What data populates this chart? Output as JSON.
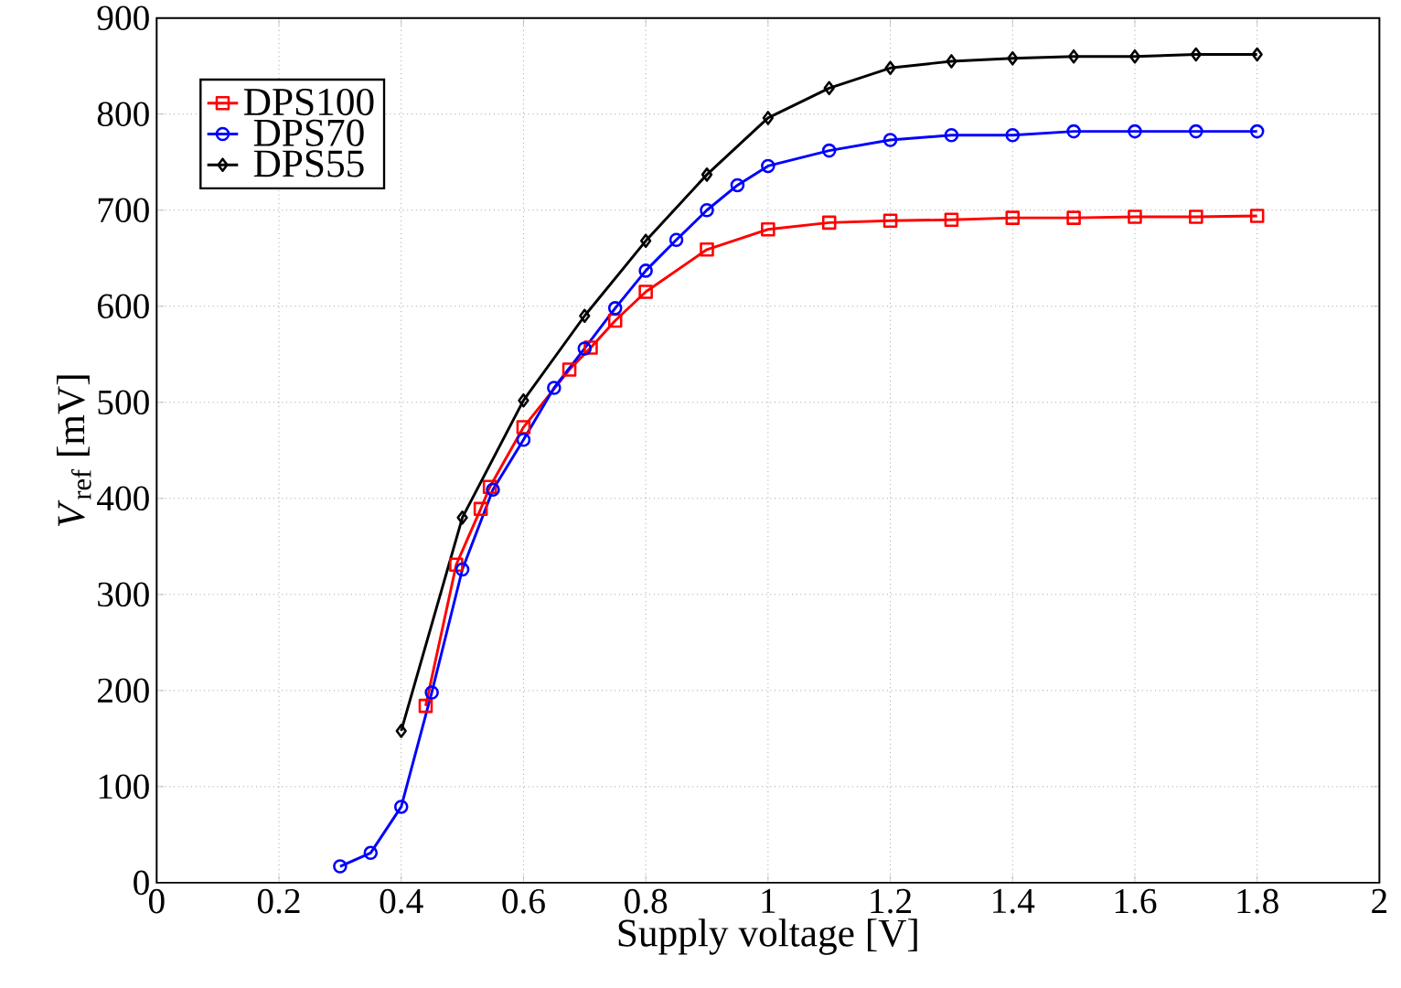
{
  "chart_data": {
    "type": "line",
    "xlabel": "Supply voltage [V]",
    "ylabel": "*V*$_{ref}$ [mV]",
    "xlim": [
      0,
      2
    ],
    "ylim": [
      0,
      900
    ],
    "xticks": [
      0,
      0.2,
      0.4,
      0.6,
      0.8,
      1,
      1.2,
      1.4,
      1.6,
      1.8,
      2
    ],
    "yticks": [
      0,
      100,
      200,
      300,
      400,
      500,
      600,
      700,
      800,
      900
    ],
    "grid": true,
    "legend": "top left",
    "line_style": "solid",
    "series": [
      {
        "name": "DPS100",
        "color": "#ff0000",
        "marker": "square",
        "x": [
          0.44,
          0.49,
          0.53,
          0.545,
          0.6,
          0.675,
          0.71,
          0.75,
          0.8,
          0.9,
          1.0,
          1.1,
          1.2,
          1.3,
          1.4,
          1.5,
          1.6,
          1.7,
          1.8
        ],
        "values": [
          184,
          331,
          389,
          412,
          474,
          534,
          557,
          585,
          615,
          659,
          680,
          687,
          689,
          690,
          692,
          692,
          693,
          693,
          694
        ]
      },
      {
        "name": "DPS70",
        "color": "#0000ff",
        "marker": "circle",
        "x": [
          0.3,
          0.35,
          0.4,
          0.45,
          0.5,
          0.55,
          0.6,
          0.65,
          0.7,
          0.75,
          0.8,
          0.85,
          0.9,
          0.95,
          1.0,
          1.1,
          1.2,
          1.3,
          1.4,
          1.5,
          1.6,
          1.7,
          1.8
        ],
        "values": [
          17,
          31,
          79,
          198,
          326,
          409,
          461,
          515,
          556,
          598,
          637,
          669,
          700,
          726,
          746,
          762,
          773,
          778,
          778,
          782,
          782,
          782,
          782
        ]
      },
      {
        "name": "DPS55",
        "color": "#000000",
        "marker": "diamond",
        "x": [
          0.4,
          0.5,
          0.6,
          0.7,
          0.8,
          0.9,
          1.0,
          1.1,
          1.2,
          1.3,
          1.4,
          1.5,
          1.6,
          1.7,
          1.8
        ],
        "values": [
          158,
          380,
          502,
          590,
          668,
          737,
          796,
          827,
          848,
          855,
          858,
          860,
          860,
          862,
          862
        ]
      }
    ]
  }
}
